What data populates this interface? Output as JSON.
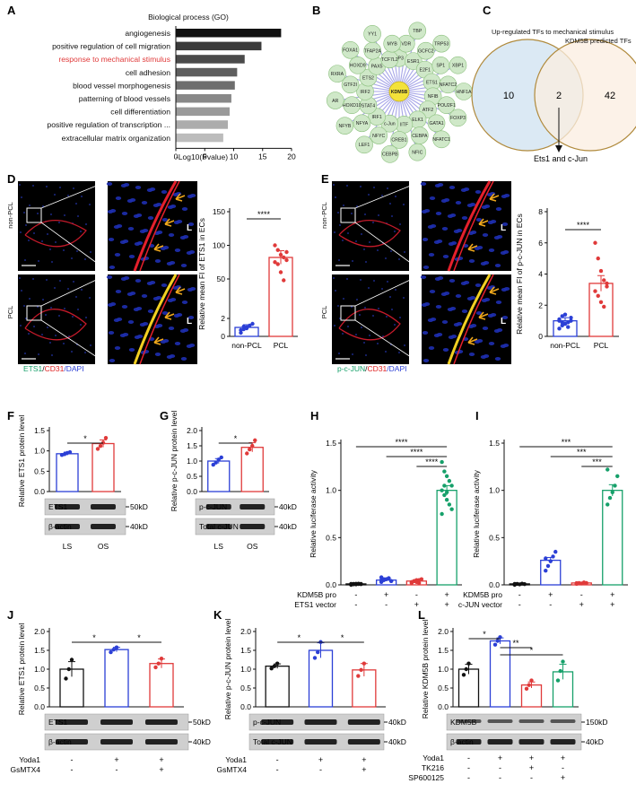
{
  "panels": [
    "A",
    "B",
    "C",
    "D",
    "E",
    "F",
    "G",
    "H",
    "I",
    "J",
    "K",
    "L"
  ],
  "panelA": {
    "title": "Biological process (GO)",
    "xlabel": "-Log10(Pvalue)",
    "ticks": [
      "0",
      "5",
      "10",
      "15",
      "20"
    ],
    "highlight_color": "#e02020"
  },
  "panelB": {
    "center": "KDM5B",
    "nodes": [
      "SP3",
      "VDR",
      "TBP",
      "ESR1",
      "GCFC2",
      "TRP53",
      "E2F1",
      "SP1",
      "XBP1",
      "ETS1",
      "NFATC2",
      "HNF1A",
      "NFIB",
      "POU2F1",
      "FOXP3",
      "ATF2",
      "GATA1",
      "NFATC1",
      "ELK1",
      "CEBPA",
      "NFIC",
      "IITF",
      "CREB1",
      "CEBPB",
      "c-Jun",
      "NFYC",
      "LEF1",
      "IRF1",
      "NFYA",
      "NFYB",
      "STAT4",
      "HOXD10",
      "AR",
      "IRF2",
      "GTF2I",
      "RXRA",
      "ETS2",
      "HOXD9",
      "FOXA1",
      "PAX5",
      "TFAP2A",
      "YY1",
      "TCF7L2",
      "MYB"
    ]
  },
  "panelC": {
    "left_label": "Up-regulated TFs to mechanical stimulus",
    "right_label": "KDM5B predicted TFs",
    "left_only": "10",
    "overlap": "2",
    "right_only": "42",
    "note": "Ets1 and c-Jun"
  },
  "panelD": {
    "ylabel": "Relative mean FI of ETS1 in ECs",
    "ticks": [
      "0",
      "2",
      "50",
      "100",
      "150"
    ],
    "sig": "****",
    "groups": [
      "non-PCL",
      "PCL"
    ],
    "row_labels": [
      "non-PCL",
      "PCL"
    ],
    "lumen": "L",
    "stain": [
      "ETS1",
      "/",
      "CD31",
      "/DAPI"
    ]
  },
  "panelE": {
    "ylabel": "Relative mean FI of p-c-JUN in ECs",
    "ticks": [
      "0",
      "2",
      "4",
      "6",
      "8"
    ],
    "sig": "****",
    "groups": [
      "non-PCL",
      "PCL"
    ],
    "row_labels": [
      "non-PCL",
      "PCL"
    ],
    "lumen": "L",
    "stain": [
      "p-c-JUN",
      "/",
      "CD31",
      "/DAPI"
    ]
  },
  "panelF": {
    "ylabel": "Relative ETS1 protein level",
    "ticks": [
      "0.0",
      "0.5",
      "1.0",
      "1.5"
    ],
    "sig": "*",
    "groups": [
      "LS",
      "OS"
    ],
    "blots": [
      "ETS1",
      "β-actin"
    ],
    "sizes": [
      "50kD",
      "40kD"
    ]
  },
  "panelG": {
    "ylabel": "Relative p-c-JUN protein level",
    "ticks": [
      "0.0",
      "0.5",
      "1.0",
      "1.5",
      "2.0"
    ],
    "sig": "*",
    "groups": [
      "LS",
      "OS"
    ],
    "blots": [
      "p-c-JUN",
      "Total c-JUN"
    ],
    "sizes": [
      "40kD",
      "40kD"
    ]
  },
  "panelH": {
    "ylabel": "Relative luciferase activity",
    "ticks": [
      "0.0",
      "0.5",
      "1.0",
      "1.5"
    ],
    "sigs": [
      "****",
      "****",
      "****"
    ],
    "rows": [
      {
        "label": "KDM5B pro",
        "signs": [
          "-",
          "+",
          "-",
          "+"
        ]
      },
      {
        "label": "ETS1 vector",
        "signs": [
          "-",
          "-",
          "+",
          "+"
        ]
      }
    ]
  },
  "panelI": {
    "ylabel": "Relative luciferase activity",
    "ticks": [
      "0.0",
      "0.5",
      "1.0",
      "1.5"
    ],
    "sigs": [
      "***",
      "***",
      "***"
    ],
    "rows": [
      {
        "label": "KDM5B pro",
        "signs": [
          "-",
          "+",
          "-",
          "+"
        ]
      },
      {
        "label": "c-JUN vector",
        "signs": [
          "-",
          "-",
          "+",
          "+"
        ]
      }
    ]
  },
  "panelJ": {
    "ylabel": "Relative ETS1 protein level",
    "ticks": [
      "0.0",
      "0.5",
      "1.0",
      "1.5",
      "2.0"
    ],
    "sigs": [
      "*",
      "*"
    ],
    "blots": [
      "ETS1",
      "β-actin"
    ],
    "sizes": [
      "50kD",
      "40kD"
    ],
    "rows": [
      {
        "label": "Yoda1",
        "signs": [
          "-",
          "+",
          "+"
        ]
      },
      {
        "label": "GsMTX4",
        "signs": [
          "-",
          "-",
          "+"
        ]
      }
    ]
  },
  "panelK": {
    "ylabel": "Relative p-c-JUN protein level",
    "ticks": [
      "0.0",
      "0.5",
      "1.0",
      "1.5",
      "2.0"
    ],
    "sigs": [
      "*",
      "*"
    ],
    "blots": [
      "p-c-JUN",
      "Total c-JUN"
    ],
    "sizes": [
      "40kD",
      "40kD"
    ],
    "rows": [
      {
        "label": "Yoda1",
        "signs": [
          "-",
          "+",
          "+"
        ]
      },
      {
        "label": "GsMTX4",
        "signs": [
          "-",
          "-",
          "+"
        ]
      }
    ]
  },
  "panelL": {
    "ylabel": "Relative KDM5B protein level",
    "ticks": [
      "0.0",
      "0.5",
      "1.0",
      "1.5",
      "2.0"
    ],
    "sigs": [
      "*",
      "**",
      "*"
    ],
    "blots": [
      "KDM5B",
      "β-actin"
    ],
    "sizes": [
      "150kD",
      "40kD"
    ],
    "rows": [
      {
        "label": "Yoda1",
        "signs": [
          "-",
          "+",
          "+",
          "+"
        ]
      },
      {
        "label": "TK216",
        "signs": [
          "-",
          "-",
          "+",
          "-"
        ]
      },
      {
        "label": "SP600125",
        "signs": [
          "-",
          "-",
          "-",
          "+"
        ]
      }
    ]
  },
  "colors": {
    "blue": "#2b3fd6",
    "red": "#e03a3a",
    "green": "#16a06a",
    "black": "#111111",
    "venn_left": "#dbe9f4",
    "venn_right": "#fbeee0",
    "venn_stroke": "#b08a3c"
  },
  "chart_data": [
    {
      "panel": "A",
      "type": "bar",
      "orientation": "horizontal",
      "categories": [
        "angiogenesis",
        "positive regulation of cell migration",
        "response to mechanical stimulus",
        "cell adhesion",
        "blood vessel morphogenesis",
        "patterning of blood vessels",
        "cell differentiation",
        "positive regulation of transcription ...",
        "extracellular matrix organization"
      ],
      "values": [
        18.2,
        14.8,
        11.9,
        10.6,
        10.2,
        9.6,
        9.3,
        9.0,
        8.2
      ],
      "xlabel": "-Log10(Pvalue)",
      "xlim": [
        0,
        20
      ],
      "title": "Biological process (GO)"
    },
    {
      "panel": "D",
      "type": "bar",
      "categories": [
        "non-PCL",
        "PCL"
      ],
      "values": [
        1.0,
        82
      ],
      "errors": [
        0.3,
        10
      ],
      "points": [
        [
          0.4,
          0.8,
          1.0,
          1.2,
          1.4,
          0.7,
          1.1,
          0.9
        ],
        [
          100,
          93,
          86,
          82,
          78,
          75,
          72,
          60,
          48,
          90
        ]
      ],
      "ylabel": "Relative mean FI of ETS1 in ECs",
      "ylim": [
        0,
        150
      ]
    },
    {
      "panel": "E",
      "type": "bar",
      "categories": [
        "non-PCL",
        "PCL"
      ],
      "values": [
        1.0,
        3.4
      ],
      "errors": [
        0.2,
        0.5
      ],
      "points": [
        [
          0.5,
          0.7,
          0.8,
          0.9,
          1.0,
          1.1,
          1.3,
          1.4,
          0.6,
          1.2,
          1.0,
          0.9
        ],
        [
          6.0,
          5.0,
          4.2,
          3.6,
          3.2,
          2.9,
          2.6,
          2.2,
          1.9,
          3.4
        ]
      ],
      "ylabel": "Relative mean FI of p-c-JUN in ECs",
      "ylim": [
        0,
        8
      ]
    },
    {
      "panel": "F",
      "type": "bar",
      "categories": [
        "LS",
        "OS"
      ],
      "values": [
        0.93,
        1.18
      ],
      "errors": [
        0.04,
        0.09
      ],
      "points": [
        [
          0.9,
          0.92,
          0.95,
          0.97
        ],
        [
          1.05,
          1.12,
          1.2,
          1.32
        ]
      ],
      "ylabel": "Relative ETS1 protein level",
      "ylim": [
        0,
        1.5
      ]
    },
    {
      "panel": "G",
      "type": "bar",
      "categories": [
        "LS",
        "OS"
      ],
      "values": [
        1.0,
        1.45
      ],
      "errors": [
        0.08,
        0.15
      ],
      "points": [
        [
          0.88,
          0.95,
          1.05,
          1.12
        ],
        [
          1.25,
          1.38,
          1.5,
          1.68
        ]
      ],
      "ylabel": "Relative p-c-JUN protein level",
      "ylim": [
        0,
        2.0
      ]
    },
    {
      "panel": "H",
      "type": "bar",
      "categories": [
        "1",
        "2",
        "3",
        "4"
      ],
      "values": [
        0.01,
        0.05,
        0.04,
        1.0
      ],
      "errors": [
        0.005,
        0.01,
        0.01,
        0.05
      ],
      "ylabel": "Relative luciferase activity",
      "ylim": [
        0,
        1.5
      ]
    },
    {
      "panel": "I",
      "type": "bar",
      "categories": [
        "1",
        "2",
        "3",
        "4"
      ],
      "values": [
        0.01,
        0.26,
        0.02,
        1.0
      ],
      "errors": [
        0.005,
        0.03,
        0.005,
        0.06
      ],
      "ylabel": "Relative luciferase activity",
      "ylim": [
        0,
        1.5
      ]
    },
    {
      "panel": "J",
      "type": "bar",
      "categories": [
        "1",
        "2",
        "3"
      ],
      "values": [
        1.0,
        1.52,
        1.15
      ],
      "errors": [
        0.2,
        0.06,
        0.12
      ],
      "points": [
        [
          0.75,
          1.0,
          1.25
        ],
        [
          1.45,
          1.52,
          1.58
        ],
        [
          1.05,
          1.15,
          1.28
        ]
      ],
      "ylabel": "Relative ETS1 protein level",
      "ylim": [
        0,
        2.0
      ]
    },
    {
      "panel": "K",
      "type": "bar",
      "categories": [
        "1",
        "2",
        "3"
      ],
      "values": [
        1.08,
        1.5,
        0.98
      ],
      "errors": [
        0.06,
        0.2,
        0.17
      ],
      "points": [
        [
          1.02,
          1.08,
          1.15
        ],
        [
          1.3,
          1.45,
          1.72
        ],
        [
          0.82,
          0.98,
          1.15
        ]
      ],
      "ylabel": "Relative p-c-JUN protein level",
      "ylim": [
        0,
        2.0
      ]
    },
    {
      "panel": "L",
      "type": "bar",
      "categories": [
        "1",
        "2",
        "3",
        "4"
      ],
      "values": [
        1.0,
        1.75,
        0.58,
        0.93
      ],
      "errors": [
        0.13,
        0.08,
        0.08,
        0.2
      ],
      "points": [
        [
          0.85,
          1.0,
          1.15
        ],
        [
          1.65,
          1.75,
          1.85
        ],
        [
          0.48,
          0.58,
          0.7
        ],
        [
          0.7,
          0.95,
          1.2
        ]
      ],
      "ylabel": "Relative KDM5B protein level",
      "ylim": [
        0,
        2.0
      ]
    }
  ]
}
